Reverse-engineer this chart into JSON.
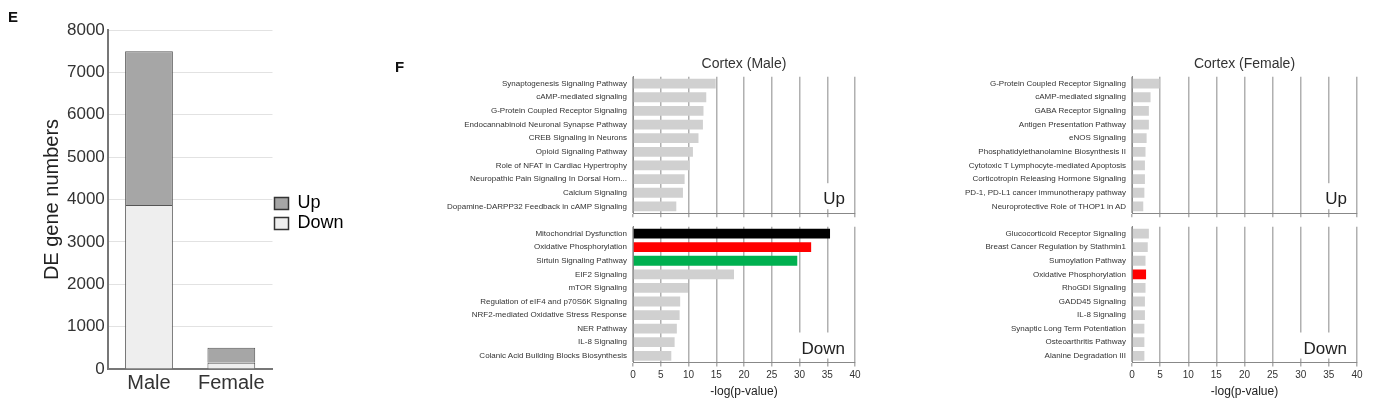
{
  "chart_data": [
    {
      "type": "bar",
      "stacked": true,
      "ylabel": "DE gene numbers",
      "categories": [
        "Male",
        "Female"
      ],
      "ylim": [
        0,
        8000
      ],
      "yticks": [
        0,
        1000,
        2000,
        3000,
        4000,
        5000,
        6000,
        7000,
        8000
      ],
      "grid": "y",
      "legend": "right",
      "annotations": [
        "E"
      ],
      "series": [
        {
          "name": "Down",
          "color": "#eeeeee",
          "values": [
            3870,
            150
          ]
        },
        {
          "name": "Up",
          "color": "#a6a6a6",
          "values": [
            3630,
            350
          ]
        }
      ]
    },
    {
      "type": "bar",
      "orientation": "horizontal",
      "title": "Cortex (Male)",
      "xlim": [
        0,
        40
      ],
      "xticks": [
        0,
        5,
        10,
        15,
        20,
        25,
        30,
        35,
        40
      ],
      "grid": "x",
      "tick_labels": "y",
      "annotations": [
        "F",
        "Up"
      ],
      "categories": [
        "Synaptogenesis Signaling Pathway",
        "cAMP-mediated signaling",
        "G-Protein Coupled Receptor Signaling",
        "Endocannabinoid Neuronal Synapse Pathway",
        "CREB Signaling in Neurons",
        "Opioid Signaling Pathway",
        "Role of NFAT in Cardiac Hypertrophy",
        "Neuropathic Pain Signaling In Dorsal Horn...",
        "Calcium Signaling",
        "Dopamine-DARPP32 Feedback in cAMP Signaling"
      ],
      "values": [
        14.9,
        13.2,
        12.7,
        12.6,
        11.8,
        10.8,
        10.2,
        9.3,
        9.0,
        7.8
      ],
      "colors": [
        "#d0d0d0",
        "#d0d0d0",
        "#d0d0d0",
        "#d0d0d0",
        "#d0d0d0",
        "#d0d0d0",
        "#d0d0d0",
        "#d0d0d0",
        "#d0d0d0",
        "#d0d0d0"
      ]
    },
    {
      "type": "bar",
      "orientation": "horizontal",
      "xlabel": "-log(p-value)",
      "xlim": [
        0,
        40
      ],
      "xticks": [
        0,
        5,
        10,
        15,
        20,
        25,
        30,
        35,
        40
      ],
      "grid": "x",
      "annotations": [
        "Down"
      ],
      "categories": [
        "Mitochondrial Dysfunction",
        "Oxidative Phosphorylation",
        "Sirtuin Signaling Pathway",
        "EIF2 Signaling",
        "mTOR Signaling",
        "Regulation of eIF4 and p70S6K Signaling",
        "NRF2-mediated Oxidative Stress Response",
        "NER Pathway",
        "IL-8 Signaling",
        "Colanic Acid Building Blocks Biosynthesis"
      ],
      "values": [
        35.5,
        32.1,
        29.6,
        18.2,
        9.9,
        8.5,
        8.4,
        7.9,
        7.5,
        6.9
      ],
      "colors": [
        "#000000",
        "#ff0000",
        "#00b050",
        "#d0d0d0",
        "#d0d0d0",
        "#d0d0d0",
        "#d0d0d0",
        "#d0d0d0",
        "#d0d0d0",
        "#d0d0d0"
      ]
    },
    {
      "type": "bar",
      "orientation": "horizontal",
      "title": "Cortex (Female)",
      "xlim": [
        0,
        40
      ],
      "xticks": [
        0,
        5,
        10,
        15,
        20,
        25,
        30,
        35,
        40
      ],
      "grid": "x",
      "tick_labels": "y",
      "annotations": [
        "Up"
      ],
      "categories": [
        "G-Protein Coupled Receptor Signaling",
        "cAMP-mediated signaling",
        "GABA Receptor Signaling",
        "Antigen Presentation Pathway",
        "eNOS Signaling",
        "Phosphatidylethanolamine Biosynthesis II",
        "Cytotoxic T Lymphocyte-mediated Apoptosis",
        "Corticotropin Releasing Hormone Signaling",
        "PD-1, PD-L1 cancer immunotherapy pathway",
        "Neuroprotective Role of THOP1 in AD"
      ],
      "values": [
        4.9,
        3.3,
        3.0,
        3.0,
        2.6,
        2.4,
        2.3,
        2.3,
        2.2,
        2.0
      ],
      "colors": [
        "#d0d0d0",
        "#d0d0d0",
        "#d0d0d0",
        "#d0d0d0",
        "#d0d0d0",
        "#d0d0d0",
        "#d0d0d0",
        "#d0d0d0",
        "#d0d0d0",
        "#d0d0d0"
      ]
    },
    {
      "type": "bar",
      "orientation": "horizontal",
      "xlabel": "-log(p-value)",
      "xlim": [
        0,
        40
      ],
      "xticks": [
        0,
        5,
        10,
        15,
        20,
        25,
        30,
        35,
        40
      ],
      "grid": "x",
      "annotations": [
        "Down"
      ],
      "categories": [
        "Glucocorticoid Receptor Signaling",
        "Breast Cancer Regulation by Stathmin1",
        "Sumoylation Pathway",
        "Oxidative Phosphorylation",
        "RhoGDI Signaling",
        "GADD45 Signaling",
        "IL-8 Signaling",
        "Synaptic Long Term Potentiation",
        "Osteoarthritis Pathway",
        "Alanine Degradation III"
      ],
      "values": [
        3.0,
        2.8,
        2.4,
        2.5,
        2.4,
        2.3,
        2.3,
        2.2,
        2.2,
        2.2
      ],
      "colors": [
        "#d0d0d0",
        "#d0d0d0",
        "#d0d0d0",
        "#ff0000",
        "#d0d0d0",
        "#d0d0d0",
        "#d0d0d0",
        "#d0d0d0",
        "#d0d0d0",
        "#d0d0d0"
      ]
    }
  ]
}
